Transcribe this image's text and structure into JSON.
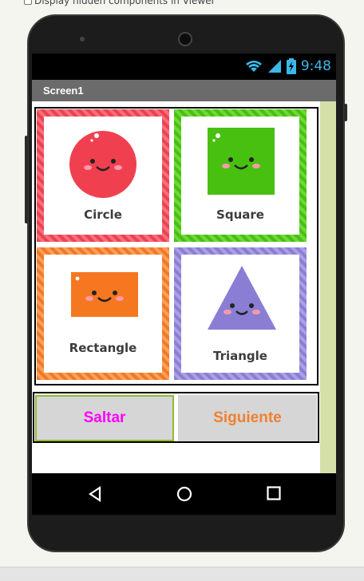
{
  "viewer": {
    "hidden_components_label": "Display hidden components in Viewer"
  },
  "status_bar": {
    "time": "9:48"
  },
  "screen": {
    "title": "Screen1"
  },
  "cards": [
    {
      "label": "Circle",
      "color": "#f04050",
      "shape": "circle"
    },
    {
      "label": "Square",
      "color": "#48c010",
      "shape": "square"
    },
    {
      "label": "Rectangle",
      "color": "#f57820",
      "shape": "rectangle"
    },
    {
      "label": "Triangle",
      "color": "#8a7ed4",
      "shape": "triangle"
    }
  ],
  "buttons": {
    "saltar": {
      "label": "Saltar",
      "color": "#ff00ff"
    },
    "siguiente": {
      "label": "Siguiente",
      "color": "#f08030"
    }
  },
  "icons": {
    "back": "back-triangle-icon",
    "home": "home-circle-icon",
    "recents": "recents-square-icon"
  }
}
